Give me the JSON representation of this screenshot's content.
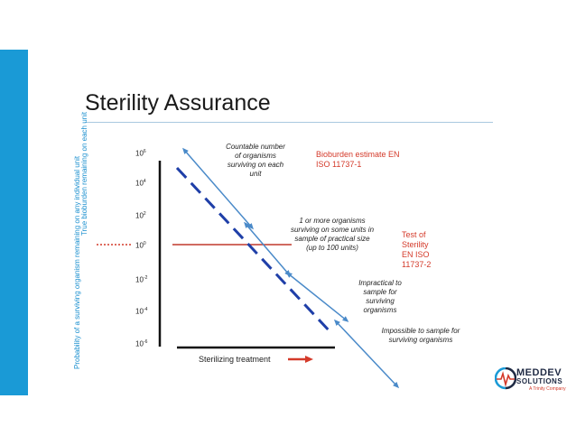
{
  "title": "Sterility Assurance",
  "y_axis": {
    "upper_label": "True bioburden remaining on each unit",
    "lower_label": "Probability of a surviving organism remaining on any individual unit",
    "ticks": [
      {
        "base": "10",
        "exp": "6"
      },
      {
        "base": "10",
        "exp": "4"
      },
      {
        "base": "10",
        "exp": "2"
      },
      {
        "base": "10",
        "exp": "0"
      },
      {
        "base": "10",
        "exp": "-2"
      },
      {
        "base": "10",
        "exp": "-4"
      },
      {
        "base": "10",
        "exp": "-6"
      }
    ]
  },
  "x_axis": {
    "label": "Sterilizing treatment"
  },
  "notes": {
    "countable": "Countable number of organisms surviving on each unit",
    "one_or_more": "1 or more organisms surviving on some units in sample of practical size (up to 100 units)",
    "impractical": "Impractical to sample for surviving organisms",
    "impossible": "Impossible to sample for surviving organisms"
  },
  "standards": {
    "bioburden": "Bioburden estimate EN ISO 11737-1",
    "sterility": "Test of Sterility EN ISO 11737-2"
  },
  "logo": {
    "line1": "MEDDEV",
    "line2": "SOLUTIONS",
    "line3": "A Trinity Company"
  },
  "colors": {
    "accent": "#1a9ad6",
    "dashed_line": "#1f3fa8",
    "arrow": "#4a8ac9",
    "red": "#d43a2a"
  }
}
